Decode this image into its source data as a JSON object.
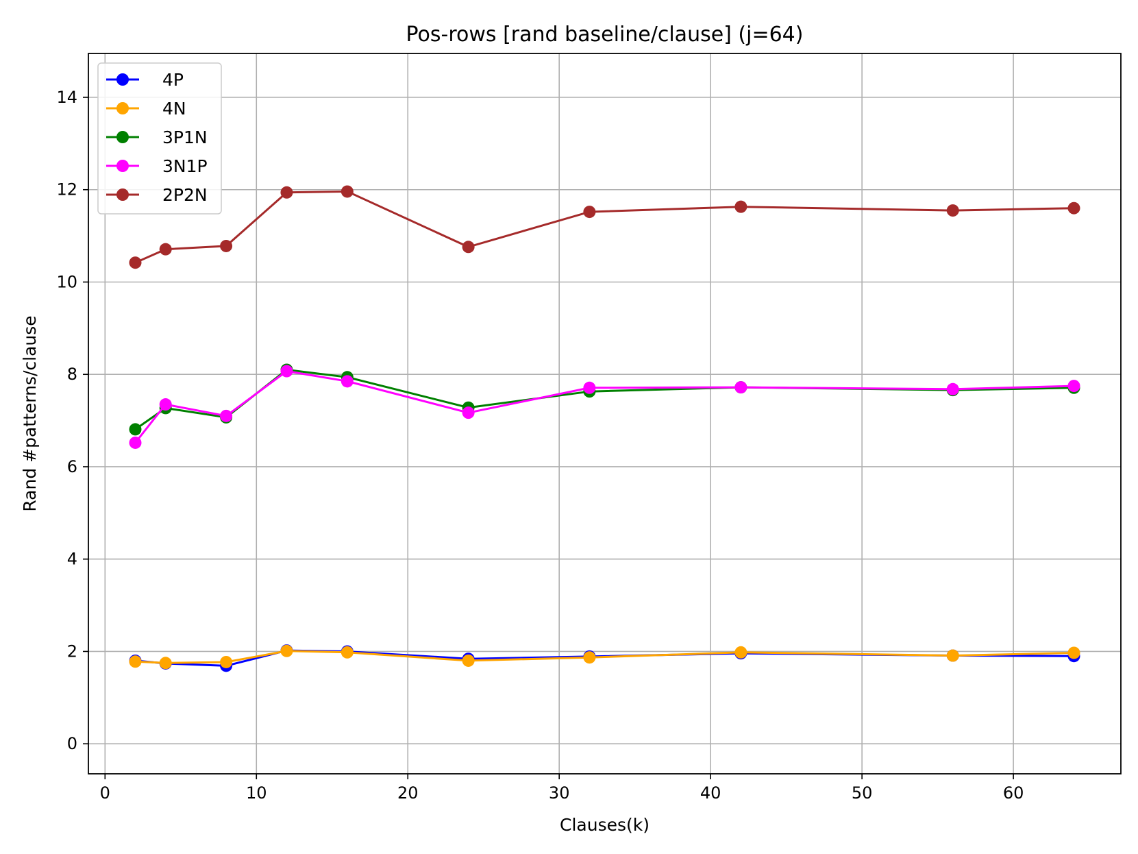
{
  "chart_data": {
    "type": "line",
    "title": "Pos-rows [rand baseline/clause] (j=64)",
    "xlabel": "Clauses(k)",
    "ylabel": "Rand #patterns/clause",
    "xlim": [
      -1.1,
      67.1
    ],
    "ylim": [
      -0.65,
      14.95
    ],
    "xticks": [
      0,
      10,
      20,
      30,
      40,
      50,
      60
    ],
    "yticks": [
      0,
      2,
      4,
      6,
      8,
      10,
      12,
      14
    ],
    "grid": true,
    "legend_position": "top-left",
    "x": [
      2,
      4,
      8,
      12,
      16,
      24,
      32,
      42,
      56,
      64
    ],
    "series": [
      {
        "name": "4P",
        "color": "#0000ff",
        "values": [
          1.8,
          1.74,
          1.69,
          2.02,
          2.0,
          1.84,
          1.89,
          1.96,
          1.91,
          1.9
        ]
      },
      {
        "name": "4N",
        "color": "#ffa500",
        "values": [
          1.78,
          1.75,
          1.77,
          2.01,
          1.98,
          1.8,
          1.87,
          1.98,
          1.91,
          1.97
        ]
      },
      {
        "name": "3P1N",
        "color": "#008000",
        "values": [
          6.81,
          7.27,
          7.07,
          8.1,
          7.94,
          7.28,
          7.63,
          7.72,
          7.66,
          7.71
        ]
      },
      {
        "name": "3N1P",
        "color": "#ff00ff",
        "values": [
          6.52,
          7.35,
          7.1,
          8.07,
          7.85,
          7.17,
          7.71,
          7.72,
          7.68,
          7.75
        ]
      },
      {
        "name": "2P2N",
        "color": "#a52a2a",
        "values": [
          10.42,
          10.71,
          10.78,
          11.94,
          11.96,
          10.76,
          11.52,
          11.63,
          11.55,
          11.6
        ]
      }
    ]
  }
}
